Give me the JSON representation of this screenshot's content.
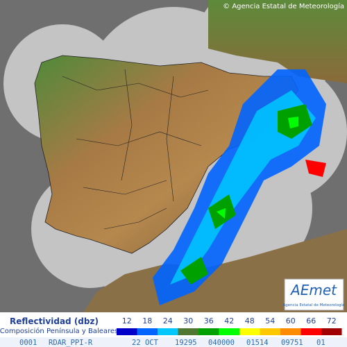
{
  "header": {
    "copyright": "© Agencia Estatal de Meteorología"
  },
  "logo": {
    "name": "AEmet",
    "subtitle": "Agencia Estatal de Meteorología"
  },
  "legend": {
    "title": "Reflectividad (dbz)",
    "subtitle": "Composición Península y Baleares",
    "items": [
      {
        "value": 12,
        "color": "#0000c8"
      },
      {
        "value": 18,
        "color": "#0064ff"
      },
      {
        "value": 24,
        "color": "#00c8ff"
      },
      {
        "value": 30,
        "color": "#507832"
      },
      {
        "value": 36,
        "color": "#00a000"
      },
      {
        "value": 42,
        "color": "#00ff00"
      },
      {
        "value": 48,
        "color": "#ffff00"
      },
      {
        "value": 54,
        "color": "#ffc800"
      },
      {
        "value": 60,
        "color": "#ff8c00"
      },
      {
        "value": 66,
        "color": "#ff0000"
      },
      {
        "value": 72,
        "color": "#a00000"
      }
    ]
  },
  "footer": {
    "fields": [
      "0001",
      "RDAR_PPI-R",
      "22 OCT",
      "19295",
      "040000",
      "01514",
      "09751",
      "01"
    ]
  }
}
